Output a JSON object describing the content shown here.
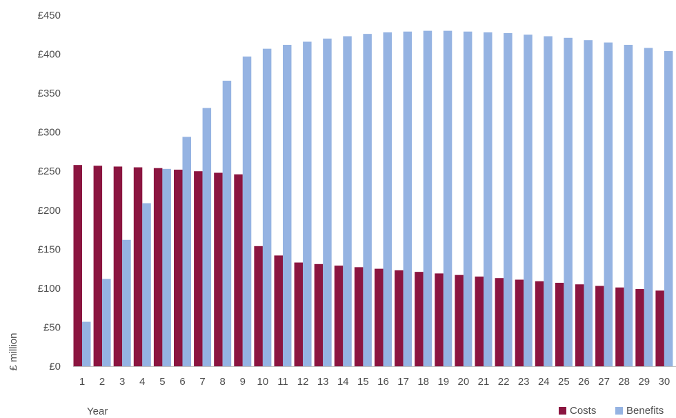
{
  "chart_data": {
    "type": "bar",
    "title": "",
    "xlabel": "Year",
    "ylabel": "£ million",
    "ylim": [
      0,
      450
    ],
    "y_ticks": [
      {
        "value": 0,
        "label": "£0"
      },
      {
        "value": 50,
        "label": "£50"
      },
      {
        "value": 100,
        "label": "£100"
      },
      {
        "value": 150,
        "label": "£150"
      },
      {
        "value": 200,
        "label": "£200"
      },
      {
        "value": 250,
        "label": "£250"
      },
      {
        "value": 300,
        "label": "£300"
      },
      {
        "value": 350,
        "label": "£350"
      },
      {
        "value": 400,
        "label": "£400"
      },
      {
        "value": 450,
        "label": "£450"
      }
    ],
    "categories": [
      "1",
      "2",
      "3",
      "4",
      "5",
      "6",
      "7",
      "8",
      "9",
      "10",
      "11",
      "12",
      "13",
      "14",
      "15",
      "16",
      "17",
      "18",
      "19",
      "20",
      "21",
      "22",
      "23",
      "24",
      "25",
      "26",
      "27",
      "28",
      "29",
      "30"
    ],
    "grid": false,
    "legend_position": "bottom-right",
    "series": [
      {
        "name": "Costs",
        "color": "#8b1540",
        "values": [
          258,
          257,
          256,
          255,
          254,
          252,
          250,
          248,
          246,
          154,
          142,
          133,
          131,
          129,
          127,
          125,
          123,
          121,
          119,
          117,
          115,
          113,
          111,
          109,
          107,
          105,
          103,
          101,
          99,
          97
        ]
      },
      {
        "name": "Benefits",
        "color": "#95b3e2",
        "values": [
          57,
          112,
          162,
          209,
          253,
          294,
          331,
          366,
          397,
          407,
          412,
          416,
          420,
          423,
          426,
          428,
          429,
          430,
          430,
          429,
          428,
          427,
          425,
          423,
          421,
          418,
          415,
          412,
          408,
          404
        ]
      }
    ]
  }
}
